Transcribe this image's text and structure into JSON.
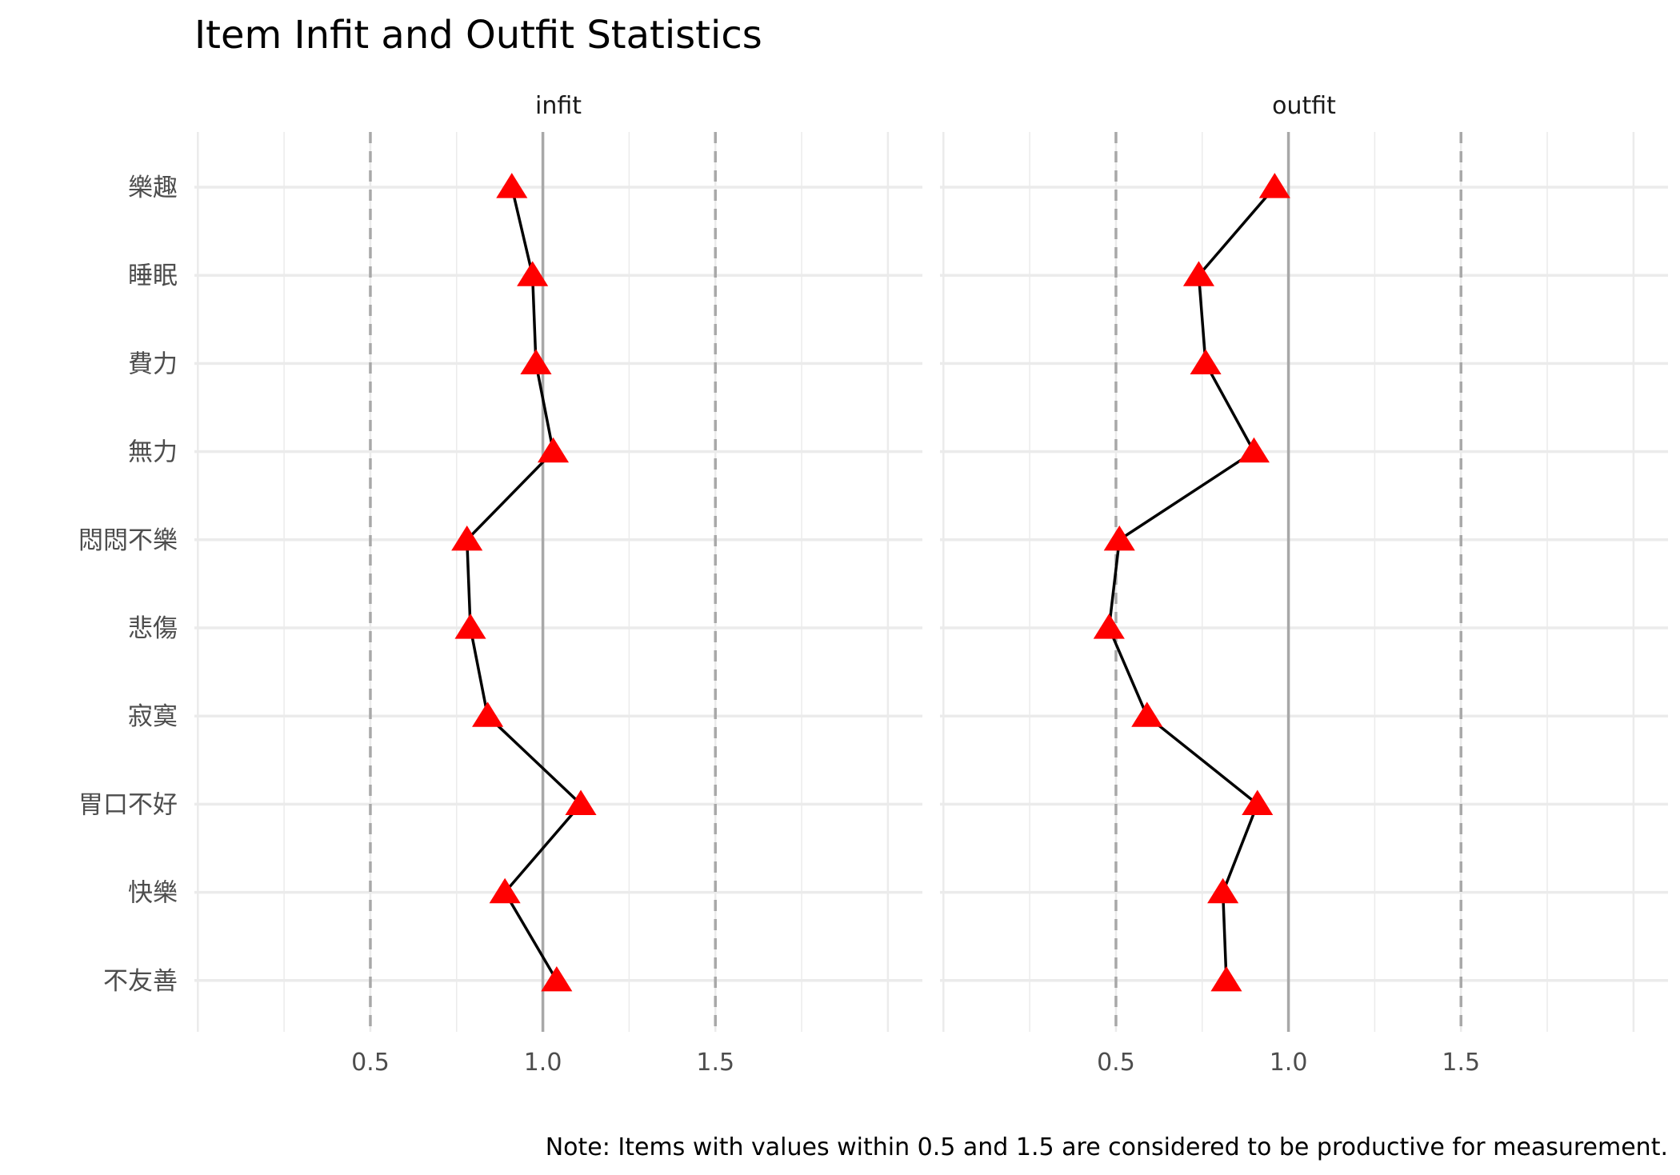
{
  "chart_data": {
    "type": "line",
    "title": "Item Infit and Outfit Statistics",
    "caption": "Note: Items with values within 0.5 and 1.5 are considered to be productive for measurement.",
    "xlim": [
      -0.01,
      2.1
    ],
    "x_ticks": [
      0.5,
      1.0,
      1.5
    ],
    "x_tick_labels": [
      "0.5",
      "1.0",
      "1.5"
    ],
    "reference_lines": {
      "solid": 1.0,
      "dashed": [
        0.5,
        1.5
      ]
    },
    "grid": true,
    "marker": "triangle",
    "items": [
      "樂趣",
      "睡眠",
      "費力",
      "無力",
      "悶悶不樂",
      "悲傷",
      "寂寞",
      "胃口不好",
      "快樂",
      "不友善"
    ],
    "panels": [
      {
        "name": "infit",
        "values": [
          0.91,
          0.97,
          0.98,
          1.03,
          0.78,
          0.79,
          0.84,
          1.11,
          0.89,
          1.04
        ]
      },
      {
        "name": "outfit",
        "values": [
          0.96,
          0.74,
          0.76,
          0.9,
          0.51,
          0.48,
          0.59,
          0.91,
          0.81,
          0.82
        ]
      }
    ],
    "colors": {
      "marker": "#ff0000",
      "line": "#000000",
      "ref_line": "#a8a8a8",
      "grid": "#ebebeb"
    }
  }
}
